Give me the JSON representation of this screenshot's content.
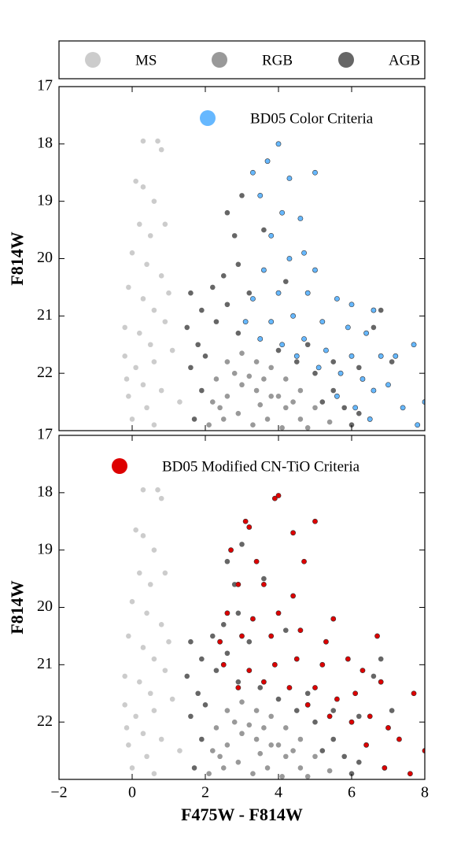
{
  "chart_data": [
    {
      "type": "scatter",
      "ylabel": "F814W",
      "xlim": [
        -2,
        8
      ],
      "xticks": [
        -2,
        0,
        2,
        4,
        6,
        8
      ],
      "show_xtick_labels": false,
      "ylim": [
        17,
        23
      ],
      "yticks": [
        17,
        18,
        19,
        20,
        21,
        22
      ],
      "invert_y": true,
      "series": [
        {
          "name": "MS",
          "color": "#cccccc",
          "x": [
            0.3,
            0.7,
            0.8,
            0.1,
            0.3,
            0.6,
            0.2,
            0.5,
            0.9,
            0.0,
            0.4,
            0.8,
            -0.1,
            0.3,
            1.0,
            0.6,
            -0.2,
            0.2,
            0.9,
            0.5,
            -0.2,
            0.1,
            0.6,
            1.1,
            0.3,
            -0.1,
            0.8,
            0.4,
            0.0,
            1.3,
            0.6,
            -0.15
          ],
          "y": [
            17.95,
            17.95,
            18.1,
            18.65,
            18.75,
            19.0,
            19.4,
            19.6,
            19.4,
            19.9,
            20.1,
            20.3,
            20.5,
            20.7,
            20.6,
            20.9,
            21.2,
            21.3,
            21.1,
            21.5,
            21.7,
            21.9,
            21.8,
            21.6,
            22.2,
            22.4,
            22.3,
            22.6,
            22.8,
            22.5,
            22.9,
            22.1
          ]
        },
        {
          "name": "RGB",
          "color": "#999999",
          "x": [
            2.3,
            2.6,
            3.0,
            3.4,
            3.8,
            4.2,
            4.6,
            5.0,
            5.4,
            2.2,
            2.6,
            3.0,
            3.4,
            3.8,
            4.2,
            4.6,
            2.1,
            2.5,
            2.9,
            3.3,
            3.7,
            4.1,
            2.8,
            3.2,
            3.6,
            4.0,
            4.4,
            2.4,
            3.5,
            4.8
          ],
          "y": [
            22.1,
            21.8,
            21.65,
            21.8,
            21.9,
            22.1,
            22.3,
            22.6,
            22.85,
            22.5,
            22.4,
            22.2,
            22.3,
            22.4,
            22.6,
            22.8,
            22.9,
            22.8,
            22.7,
            22.9,
            22.8,
            22.95,
            22.0,
            22.05,
            22.1,
            22.4,
            22.5,
            22.6,
            22.55,
            22.95
          ]
        },
        {
          "name": "AGB",
          "color": "#666666",
          "x": [
            2.2,
            1.6,
            1.9,
            1.5,
            1.8,
            1.6,
            1.9,
            1.7,
            2.5,
            2.6,
            2.8,
            3.0,
            2.9,
            3.2,
            2.6,
            2.3,
            2.9,
            3.5,
            4.0,
            4.5,
            5.0,
            5.5,
            5.8,
            6.0,
            4.8,
            5.5,
            6.2,
            6.6,
            6.8,
            7.1,
            3.6,
            4.2,
            6.2,
            5.2,
            2.0
          ],
          "y": [
            20.5,
            20.6,
            20.9,
            21.2,
            21.5,
            21.9,
            22.3,
            22.8,
            20.3,
            19.2,
            19.6,
            18.9,
            20.1,
            20.6,
            20.8,
            21.1,
            21.3,
            21.4,
            21.6,
            21.8,
            22.0,
            22.3,
            22.6,
            22.9,
            21.5,
            21.8,
            21.9,
            21.2,
            20.9,
            21.8,
            19.5,
            20.4,
            22.7,
            22.5,
            21.7
          ]
        },
        {
          "name": "BD05 Color Criteria",
          "color": "#66b8ff",
          "x": [
            3.3,
            4.0,
            3.7,
            4.3,
            5.0,
            3.5,
            4.1,
            4.6,
            3.8,
            4.7,
            5.0,
            3.6,
            4.3,
            3.3,
            4.0,
            4.8,
            5.6,
            6.0,
            6.6,
            3.1,
            3.8,
            4.4,
            5.2,
            5.9,
            6.4,
            3.5,
            4.1,
            4.7,
            5.3,
            6.0,
            6.8,
            7.2,
            4.5,
            5.1,
            5.7,
            6.3,
            7.0,
            5.6,
            6.1,
            6.6,
            7.7,
            6.5,
            7.4,
            7.8,
            8.0
          ],
          "y": [
            18.5,
            18.0,
            18.3,
            18.6,
            18.5,
            18.9,
            19.2,
            19.3,
            19.6,
            19.9,
            20.2,
            20.2,
            20.0,
            20.7,
            20.6,
            20.6,
            20.7,
            20.8,
            20.9,
            21.1,
            21.1,
            21.0,
            21.1,
            21.2,
            21.3,
            21.4,
            21.5,
            21.4,
            21.6,
            21.7,
            21.7,
            21.7,
            21.7,
            21.9,
            22.0,
            22.1,
            22.2,
            22.4,
            22.6,
            22.3,
            21.5,
            22.8,
            22.6,
            22.9,
            22.5
          ]
        }
      ]
    },
    {
      "type": "scatter",
      "ylabel": "F814W",
      "xlabel": "F475W - F814W",
      "xlim": [
        -2,
        8
      ],
      "xticks": [
        {
          "value": -2,
          "label": "−2"
        },
        0,
        2,
        4,
        6,
        8
      ],
      "show_xtick_labels": true,
      "ylim": [
        17,
        23
      ],
      "yticks": [
        17,
        18,
        19,
        20,
        21,
        22
      ],
      "invert_y": true,
      "series": [
        {
          "color": "#cccccc",
          "x": [
            0.3,
            0.7,
            0.8,
            0.1,
            0.3,
            0.6,
            0.2,
            0.5,
            0.9,
            0.0,
            0.4,
            0.8,
            -0.1,
            0.3,
            1.0,
            0.6,
            -0.2,
            0.2,
            0.9,
            0.5,
            -0.2,
            0.1,
            0.6,
            1.1,
            0.3,
            -0.1,
            0.8,
            0.4,
            0.0,
            1.3,
            0.6,
            -0.15
          ],
          "y": [
            17.95,
            17.95,
            18.1,
            18.65,
            18.75,
            19.0,
            19.4,
            19.6,
            19.4,
            19.9,
            20.1,
            20.3,
            20.5,
            20.7,
            20.6,
            20.9,
            21.2,
            21.3,
            21.1,
            21.5,
            21.7,
            21.9,
            21.8,
            21.6,
            22.2,
            22.4,
            22.3,
            22.6,
            22.8,
            22.5,
            22.9,
            22.1
          ]
        },
        {
          "color": "#999999",
          "x": [
            2.3,
            2.6,
            3.0,
            3.4,
            3.8,
            4.2,
            4.6,
            5.0,
            5.4,
            2.2,
            2.6,
            3.0,
            3.4,
            3.8,
            4.2,
            4.6,
            2.1,
            2.5,
            2.9,
            3.3,
            3.7,
            4.1,
            2.8,
            3.2,
            3.6,
            4.0,
            4.4,
            2.4,
            3.5,
            4.8
          ],
          "y": [
            22.1,
            21.8,
            21.65,
            21.8,
            21.9,
            22.1,
            22.3,
            22.6,
            22.85,
            22.5,
            22.4,
            22.2,
            22.3,
            22.4,
            22.6,
            22.8,
            22.9,
            22.8,
            22.7,
            22.9,
            22.8,
            22.95,
            22.0,
            22.05,
            22.1,
            22.4,
            22.5,
            22.6,
            22.55,
            22.95
          ]
        },
        {
          "color": "#666666",
          "x": [
            2.2,
            1.6,
            1.9,
            1.5,
            1.8,
            1.6,
            1.9,
            1.7,
            2.5,
            2.6,
            2.8,
            3.0,
            2.9,
            3.2,
            2.6,
            2.3,
            2.9,
            3.5,
            4.0,
            4.5,
            5.0,
            5.5,
            5.8,
            6.0,
            4.8,
            5.5,
            6.2,
            6.6,
            6.8,
            7.1,
            3.6,
            4.2,
            6.2,
            5.2,
            2.0
          ],
          "y": [
            20.5,
            20.6,
            20.9,
            21.2,
            21.5,
            21.9,
            22.3,
            22.8,
            20.3,
            19.2,
            19.6,
            18.9,
            20.1,
            20.6,
            20.8,
            21.1,
            21.3,
            21.4,
            21.6,
            21.8,
            22.0,
            22.3,
            22.6,
            22.9,
            21.5,
            21.8,
            21.9,
            21.2,
            20.9,
            21.8,
            19.5,
            20.4,
            22.7,
            22.5,
            21.7
          ]
        },
        {
          "name": "BD05 Modified CN-TiO Criteria",
          "color": "#dd0000",
          "x": [
            3.1,
            3.2,
            3.9,
            4.0,
            4.4,
            5.0,
            2.7,
            3.4,
            4.7,
            2.9,
            3.6,
            4.4,
            2.6,
            3.3,
            4.0,
            5.5,
            2.4,
            3.0,
            3.8,
            4.6,
            5.3,
            6.7,
            2.5,
            3.2,
            3.9,
            4.5,
            5.2,
            5.9,
            6.3,
            2.9,
            3.6,
            4.3,
            5.0,
            5.6,
            6.1,
            6.8,
            4.8,
            5.4,
            6.0,
            6.5,
            7.0,
            6.4,
            7.3,
            6.9,
            7.6,
            8.0,
            7.7
          ],
          "y": [
            18.5,
            18.6,
            18.1,
            18.05,
            18.7,
            18.5,
            19.0,
            19.2,
            19.2,
            19.6,
            19.6,
            19.8,
            20.1,
            20.2,
            20.1,
            20.2,
            20.6,
            20.5,
            20.5,
            20.4,
            20.6,
            20.5,
            21.0,
            21.1,
            21.0,
            20.9,
            21.0,
            20.9,
            21.1,
            21.4,
            21.3,
            21.4,
            21.4,
            21.6,
            21.5,
            21.3,
            21.7,
            21.9,
            22.0,
            21.9,
            22.1,
            22.4,
            22.3,
            22.8,
            22.9,
            22.5,
            21.5
          ]
        }
      ]
    }
  ]
}
